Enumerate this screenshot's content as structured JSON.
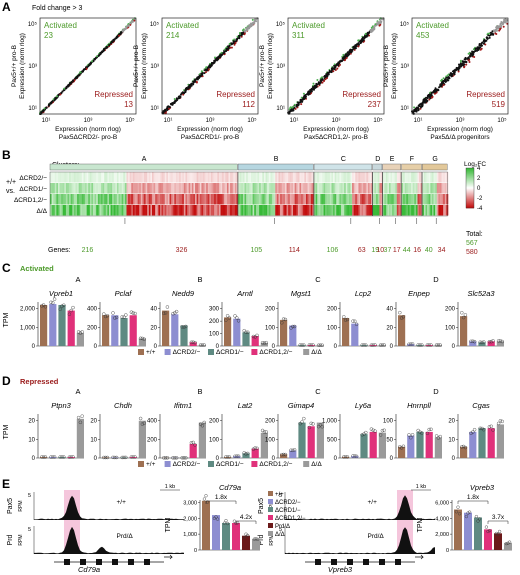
{
  "panelA": {
    "letter": "A",
    "caption": "Fold change > 3",
    "activated_label": "Activated",
    "repressed_label": "Repressed",
    "x_tick_labels": [
      "10¹",
      "10³",
      "10⁵"
    ],
    "y_axis_label": "Expression (norm rlog)",
    "x_axis_label": "Expression (norm rlog)",
    "plots": [
      {
        "y_label": "Pax5+/+ pro-B",
        "x_label": "Pax5ΔCRD2/- pro-B",
        "activated": "23",
        "repressed": "13"
      },
      {
        "y_label": "Pax5+/+ pro-B",
        "x_label": "Pax5ΔCRD1/- pro-B",
        "activated": "214",
        "repressed": "112"
      },
      {
        "y_label": "Pax5+/+ pro-B",
        "x_label": "Pax5ΔCRD1,2/- pro-B",
        "activated": "311",
        "repressed": "237"
      },
      {
        "y_label": "Pax5+/+ pro-B",
        "x_label": "Pax5Δ/Δ progenitors",
        "activated": "453",
        "repressed": "519"
      }
    ]
  },
  "panelB": {
    "letter": "B",
    "clusters_label": "Clusters:",
    "clusters": [
      "A",
      "B",
      "C",
      "D",
      "E",
      "F",
      "G"
    ],
    "row_prefix": "+/+ vs.",
    "rows": [
      "ΔCRD2/−",
      "ΔCRD1/−",
      "ΔCRD1,2/−",
      "Δ/Δ"
    ],
    "genes_label": "Genes:",
    "gene_counts": [
      {
        "value": "216",
        "color": "#4c9a2a"
      },
      {
        "value": "326",
        "color": "#9a1a1a"
      },
      {
        "value": "105",
        "color": "#4c9a2a"
      },
      {
        "value": "114",
        "color": "#9a1a1a"
      },
      {
        "value": "106",
        "color": "#4c9a2a"
      },
      {
        "value": "63",
        "color": "#9a1a1a"
      },
      {
        "value": "19",
        "color": "#4c9a2a"
      },
      {
        "value": "10",
        "color": "#9a1a1a"
      },
      {
        "value": "37",
        "color": "#4c9a2a"
      },
      {
        "value": "17",
        "color": "#9a1a1a"
      },
      {
        "value": "44",
        "color": "#4c9a2a"
      },
      {
        "value": "16",
        "color": "#9a1a1a"
      },
      {
        "value": "40",
        "color": "#4c9a2a"
      },
      {
        "value": "34",
        "color": "#9a1a1a"
      }
    ],
    "legend_title": "Log₂FC",
    "legend_ticks": [
      "4",
      "2",
      "0",
      "-2",
      "-4"
    ],
    "total_label": "Total:",
    "total_activated": "567",
    "total_repressed": "580",
    "activated_color": "#4c9a2a",
    "repressed_color": "#9a1a1a"
  },
  "panelC": {
    "letter": "C",
    "title": "Activated",
    "tpm_label": "TPM",
    "groups": [
      {
        "cluster": "A",
        "genes": [
          {
            "name": "Vpreb1",
            "ticks": [
              "0",
              "1,000",
              "2,000"
            ],
            "values": [
              2200,
              2250,
              2200,
              1900,
              700
            ]
          },
          {
            "name": "Pclaf",
            "ticks": [
              "0",
              "200",
              "400"
            ],
            "values": [
              330,
              330,
              300,
              330,
              80
            ]
          }
        ]
      },
      {
        "cluster": "B",
        "genes": [
          {
            "name": "Nedd9",
            "ticks": [
              "0",
              "20",
              "40"
            ],
            "values": [
              38,
              34,
              22,
              4,
              1
            ]
          },
          {
            "name": "Arntl",
            "ticks": [
              "0",
              "100",
              "200",
              "300"
            ],
            "values": [
              230,
              220,
              110,
              80,
              25
            ]
          }
        ]
      },
      {
        "cluster": "C",
        "genes": [
          {
            "name": "Mgst1",
            "ticks": [
              "0",
              "100",
              "200"
            ],
            "values": [
              140,
              110,
              5,
              5,
              4
            ]
          },
          {
            "name": "Lcp2",
            "ticks": [
              "0",
              "100",
              "200"
            ],
            "values": [
              150,
              120,
              5,
              5,
              5
            ]
          }
        ]
      },
      {
        "cluster": "D",
        "genes": [
          {
            "name": "Enpep",
            "ticks": [
              "0",
              "20",
              "40"
            ],
            "values": [
              33,
              2,
              1,
              1,
              1
            ]
          },
          {
            "name": "Slc52a3",
            "ticks": [
              "0",
              "100",
              "200"
            ],
            "values": [
              160,
              25,
              20,
              25,
              25
            ]
          }
        ]
      }
    ],
    "legend": [
      {
        "label": "+/+",
        "color": "#9e7052"
      },
      {
        "label": "ΔCRD2/−",
        "color": "#8d8ed1"
      },
      {
        "label": "ΔCRD1/−",
        "color": "#5f8a82"
      },
      {
        "label": "ΔCRD1,2/−",
        "color": "#e0317a"
      },
      {
        "label": "Δ/Δ",
        "color": "#9a9a9a"
      }
    ]
  },
  "panelD": {
    "letter": "D",
    "title": "Repressed",
    "tpm_label": "TPM",
    "groups": [
      {
        "cluster": "A",
        "genes": [
          {
            "name": "Ptpn3",
            "ticks": [
              "0",
              "10",
              "20"
            ],
            "values": [
              0.5,
              0.5,
              0.5,
              0.5,
              21
            ]
          },
          {
            "name": "Chdh",
            "ticks": [
              "0",
              "10",
              "20"
            ],
            "values": [
              0.3,
              0.3,
              0.3,
              0.5,
              20
            ]
          }
        ]
      },
      {
        "cluster": "B",
        "genes": [
          {
            "name": "Ifitm1",
            "ticks": [
              "0",
              "200",
              "400"
            ],
            "values": [
              2,
              2,
              2,
              150,
              380
            ]
          },
          {
            "name": "Lat2",
            "ticks": [
              "0",
              "100",
              "200"
            ],
            "values": [
              5,
              10,
              25,
              50,
              135
            ]
          }
        ]
      },
      {
        "cluster": "C",
        "genes": [
          {
            "name": "Gimap4",
            "ticks": [
              "0",
              "100",
              "200"
            ],
            "values": [
              20,
              40,
              190,
              170,
              190
            ]
          },
          {
            "name": "Ly6a",
            "ticks": [
              "0",
              "500",
              "1,000"
            ],
            "values": [
              30,
              50,
              640,
              700,
              680
            ]
          }
        ]
      },
      {
        "cluster": "D",
        "genes": [
          {
            "name": "Hnrnpll",
            "ticks": [
              "0",
              "50",
              "100"
            ],
            "values": [
              30,
              60,
              70,
              70,
              55
            ]
          },
          {
            "name": "Cgas",
            "ticks": [
              "0",
              "10",
              "20"
            ],
            "values": [
              6,
              14,
              16,
              16,
              18
            ]
          }
        ]
      }
    ],
    "legend": [
      {
        "label": "+/+",
        "color": "#9e7052"
      },
      {
        "label": "ΔCRD2/−",
        "color": "#8d8ed1"
      },
      {
        "label": "ΔCRD1/−",
        "color": "#5f8a82"
      },
      {
        "label": "ΔCRD1,2/−",
        "color": "#e0317a"
      },
      {
        "label": "Δ/Δ",
        "color": "#9a9a9a"
      }
    ]
  },
  "panelE": {
    "letter": "E",
    "tracks_left": {
      "row1_label": "Pax5",
      "row2_label": "Prd",
      "rpm": "RPM",
      "scale": "5",
      "genotype1": "+/+",
      "genotype2": "Prd/Δ",
      "bar": "1 kb",
      "gene": "Cd79a"
    },
    "tracks_right": {
      "row1_label": "Pax5",
      "row2_label": "Prd",
      "rpm": "RPM",
      "scale": "5",
      "genotype1": "+/+",
      "genotype2": "Prd/Δ",
      "bar": "1 kb",
      "gene": "Vpreb3"
    },
    "bar_left": {
      "title": "Cd79a",
      "ticks": [
        "0",
        "1,000",
        "2,000",
        "3,000"
      ],
      "fold1": "1.8x",
      "fold2": "4.2x",
      "values": [
        3100,
        2200,
        1700,
        1700,
        900,
        700
      ]
    },
    "bar_right": {
      "title": "Vpreb3",
      "ticks": [
        "0",
        "2,000",
        "4,000",
        "6,000"
      ],
      "fold1": "1.8x",
      "fold2": "3.7x",
      "values": [
        5100,
        4700,
        4100,
        2600,
        2100,
        900
      ]
    },
    "legend": [
      {
        "label": "+/+",
        "color": "#9e7052"
      },
      {
        "label": "ΔCRD2/−",
        "color": "#8d8ed1"
      },
      {
        "label": "ΔCRD1/−",
        "color": "#5f8a82"
      },
      {
        "label": "ΔCRD1,2/−",
        "color": "#e0317a"
      },
      {
        "label": "Prd/Δ",
        "color": "#6b1a1a"
      },
      {
        "label": "Δ/Δ",
        "color": "#9a9a9a"
      }
    ],
    "tpm_label": "TPM"
  }
}
